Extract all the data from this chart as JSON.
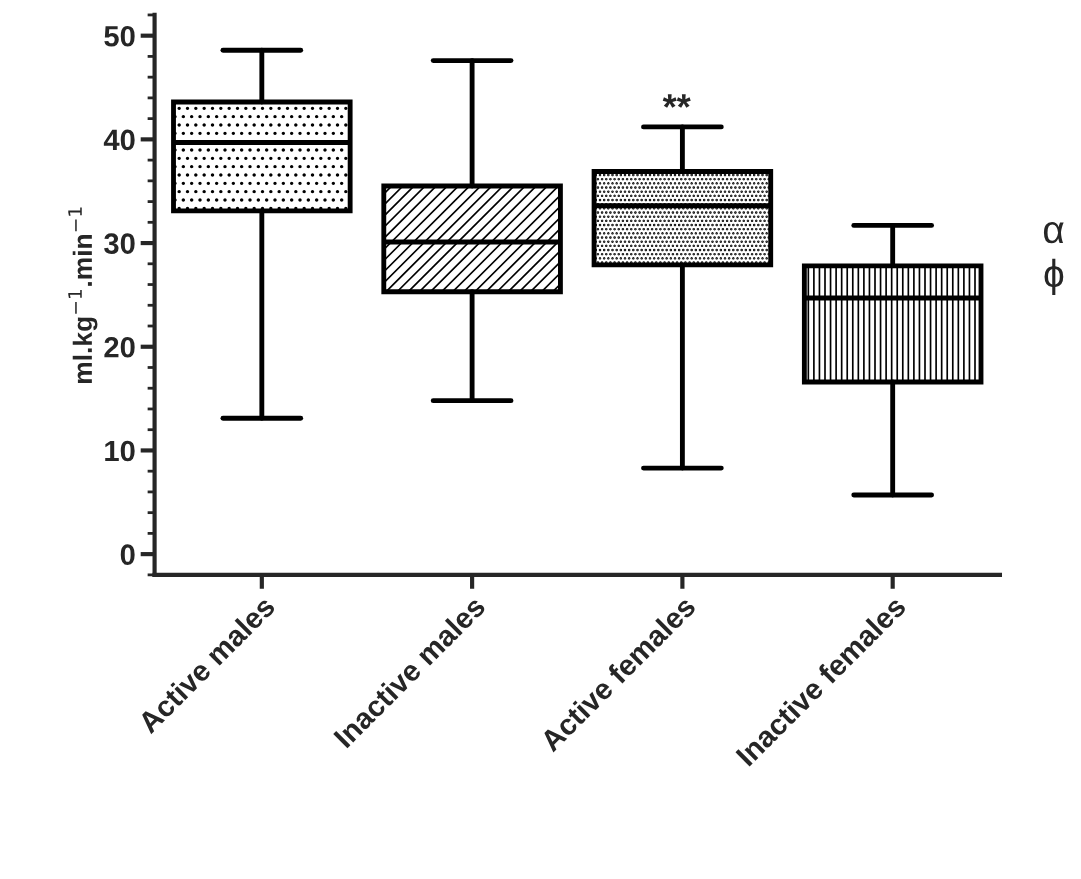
{
  "chart_data": {
    "type": "box",
    "ylabel": "ml.kg$^{−1}$.min$^{−1}$",
    "categories": [
      "Active males",
      "Inactive males",
      "Active females",
      "Inactive females"
    ],
    "boxes": [
      {
        "low": 13.1,
        "q1": 33.1,
        "median": 39.7,
        "q3": 43.6,
        "high": 48.6
      },
      {
        "low": 14.8,
        "q1": 25.3,
        "median": 30.1,
        "q3": 35.5,
        "high": 47.6
      },
      {
        "low": 8.3,
        "q1": 27.9,
        "median": 33.6,
        "q3": 36.9,
        "high": 41.2
      },
      {
        "low": 5.7,
        "q1": 16.6,
        "median": 24.7,
        "q3": 27.8,
        "high": 31.7
      }
    ],
    "colors": [
      "#000000",
      "#000000",
      "#000000",
      "#000000"
    ],
    "ylim": [
      -2,
      52
    ],
    "yticks": [
      0,
      10,
      20,
      30,
      40,
      50
    ],
    "grid": false,
    "legend": false,
    "annotations": [
      "**",
      "α",
      "ϕ"
    ]
  }
}
